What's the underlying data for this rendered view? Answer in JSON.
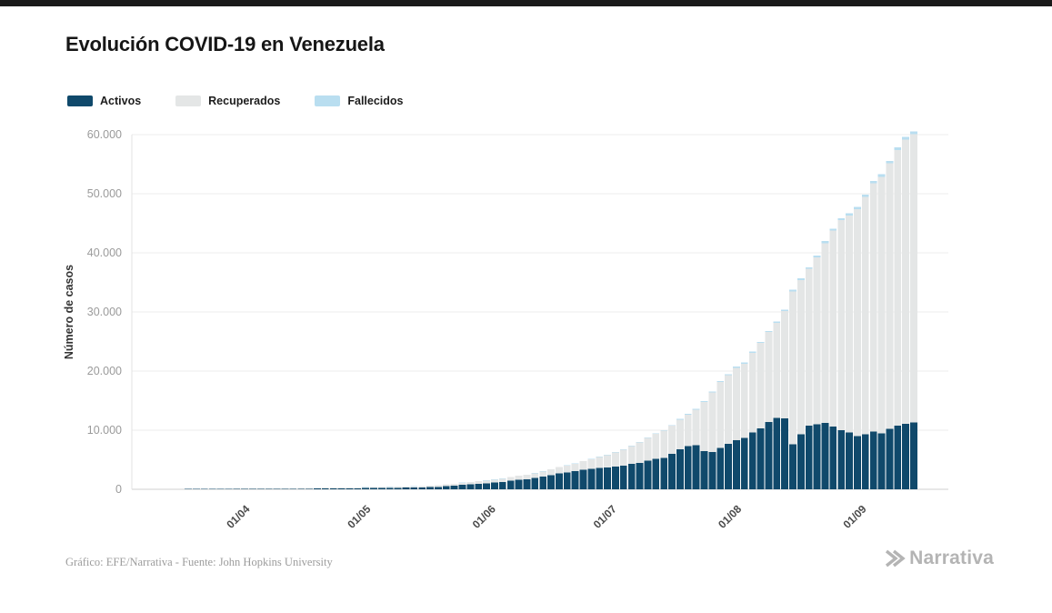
{
  "title": "Evolución COVID-19 en Venezuela",
  "legend": [
    {
      "key": "activos",
      "label": "Activos",
      "color": "#10496b"
    },
    {
      "key": "recuperados",
      "label": "Recuperados",
      "color": "#e4e6e6"
    },
    {
      "key": "fallecidos",
      "label": "Fallecidos",
      "color": "#b9def0"
    }
  ],
  "footer": {
    "credit": "Gráfico: EFE/Narrativa - Fuente: John Hopkins University"
  },
  "logo": {
    "text": "Narrativa"
  },
  "chart_data": {
    "type": "bar",
    "stacked": true,
    "title": "Evolución COVID-19 en Venezuela",
    "xlabel": "",
    "ylabel": "Número de casos",
    "ylim": [
      0,
      60000
    ],
    "grid": "horizontal",
    "legend_position": "top-left",
    "y_ticks": [
      {
        "value": 0,
        "label": "0"
      },
      {
        "value": 10000,
        "label": "10.000"
      },
      {
        "value": 20000,
        "label": "20.000"
      },
      {
        "value": 30000,
        "label": "30.000"
      },
      {
        "value": 40000,
        "label": "40.000"
      },
      {
        "value": 50000,
        "label": "50.000"
      },
      {
        "value": 60000,
        "label": "60.000"
      }
    ],
    "x_ticks": [
      {
        "label": "01/04",
        "day": 27
      },
      {
        "label": "01/05",
        "day": 57
      },
      {
        "label": "01/06",
        "day": 88
      },
      {
        "label": "01/07",
        "day": 118
      },
      {
        "label": "01/08",
        "day": 149
      },
      {
        "label": "01/09",
        "day": 180
      }
    ],
    "colors": {
      "activos": "#10496b",
      "recuperados": "#e4e6e6",
      "fallecidos": "#b9def0"
    },
    "series_order": [
      "activos",
      "recuperados",
      "fallecidos"
    ],
    "columns": [
      "fecha",
      "activos",
      "recuperados",
      "fallecidos"
    ],
    "points": [
      [
        "17/03",
        36,
        0,
        0
      ],
      [
        "19/03",
        41,
        1,
        0
      ],
      [
        "21/03",
        47,
        2,
        1
      ],
      [
        "23/03",
        56,
        5,
        1
      ],
      [
        "25/03",
        66,
        9,
        2
      ],
      [
        "27/03",
        74,
        15,
        2
      ],
      [
        "29/03",
        81,
        23,
        3
      ],
      [
        "31/03",
        94,
        31,
        3
      ],
      [
        "02/04",
        99,
        43,
        4
      ],
      [
        "04/04",
        100,
        50,
        5
      ],
      [
        "06/04",
        100,
        60,
        5
      ],
      [
        "08/04",
        86,
        78,
        7
      ],
      [
        "10/04",
        84,
        84,
        7
      ],
      [
        "12/04",
        82,
        91,
        8
      ],
      [
        "14/04",
        84,
        100,
        9
      ],
      [
        "16/04",
        87,
        108,
        9
      ],
      [
        "18/04",
        103,
        115,
        9
      ],
      [
        "20/04",
        126,
        121,
        9
      ],
      [
        "22/04",
        152,
        126,
        10
      ],
      [
        "24/04",
        171,
        130,
        10
      ],
      [
        "26/04",
        180,
        135,
        10
      ],
      [
        "28/04",
        179,
        140,
        10
      ],
      [
        "30/04",
        181,
        142,
        10
      ],
      [
        "02/05",
        201,
        146,
        10
      ],
      [
        "04/05",
        217,
        152,
        10
      ],
      [
        "06/05",
        232,
        160,
        10
      ],
      [
        "08/05",
        246,
        170,
        10
      ],
      [
        "10/05",
        260,
        182,
        10
      ],
      [
        "12/05",
        273,
        197,
        10
      ],
      [
        "14/05",
        284,
        215,
        10
      ],
      [
        "16/05",
        296,
        235,
        10
      ],
      [
        "18/05",
        352,
        256,
        10
      ],
      [
        "20/05",
        398,
        280,
        10
      ],
      [
        "22/05",
        509,
        305,
        10
      ],
      [
        "24/05",
        601,
        333,
        10
      ],
      [
        "26/05",
        746,
        365,
        10
      ],
      [
        "28/05",
        834,
        400,
        11
      ],
      [
        "30/05",
        917,
        440,
        13
      ],
      [
        "01/06",
        1016,
        480,
        14
      ],
      [
        "03/06",
        1126,
        520,
        16
      ],
      [
        "05/06",
        1236,
        565,
        18
      ],
      [
        "07/06",
        1452,
        615,
        20
      ],
      [
        "09/06",
        1624,
        670,
        22
      ],
      [
        "11/06",
        1720,
        730,
        23
      ],
      [
        "13/06",
        1913,
        800,
        25
      ],
      [
        "15/06",
        2160,
        875,
        27
      ],
      [
        "17/06",
        2396,
        960,
        30
      ],
      [
        "19/06",
        2701,
        1055,
        33
      ],
      [
        "21/06",
        2853,
        1160,
        35
      ],
      [
        "23/06",
        3048,
        1280,
        38
      ],
      [
        "25/06",
        3318,
        1420,
        41
      ],
      [
        "27/06",
        3486,
        1600,
        44
      ],
      [
        "29/06",
        3642,
        1840,
        48
      ],
      [
        "01/07",
        3681,
        2100,
        51
      ],
      [
        "03/07",
        3817,
        2400,
        56
      ],
      [
        "05/07",
        3989,
        2700,
        61
      ],
      [
        "07/07",
        4294,
        3050,
        67
      ],
      [
        "09/07",
        4487,
        3450,
        73
      ],
      [
        "11/07",
        4823,
        3900,
        80
      ],
      [
        "13/07",
        5127,
        4250,
        88
      ],
      [
        "15/07",
        5314,
        4600,
        96
      ],
      [
        "17/07",
        6000,
        4750,
        104
      ],
      [
        "19/07",
        6800,
        4979,
        112
      ],
      [
        "21/07",
        7300,
        5354,
        120
      ],
      [
        "23/07",
        7500,
        5984,
        129
      ],
      [
        "25/07",
        6500,
        8291,
        138
      ],
      [
        "27/07",
        6300,
        10121,
        150
      ],
      [
        "29/07",
        7000,
        11141,
        160
      ],
      [
        "31/07",
        7700,
        11573,
        170
      ],
      [
        "02/08",
        8300,
        12276,
        178
      ],
      [
        "04/08",
        8700,
        12553,
        185
      ],
      [
        "06/08",
        9600,
        13485,
        195
      ],
      [
        "08/08",
        10300,
        14456,
        205
      ],
      [
        "10/08",
        11400,
        15181,
        219
      ],
      [
        "12/08",
        12100,
        16074,
        232
      ],
      [
        "14/08",
        12000,
        18119,
        250
      ],
      [
        "16/08",
        7600,
        25888,
        267
      ],
      [
        "18/08",
        9300,
        26100,
        281
      ],
      [
        "20/08",
        10800,
        26471,
        296
      ],
      [
        "22/08",
        11000,
        28253,
        311
      ],
      [
        "24/08",
        11200,
        30437,
        328
      ],
      [
        "26/08",
        10600,
        33171,
        344
      ],
      [
        "28/08",
        10000,
        35508,
        360
      ],
      [
        "30/08",
        9600,
        36747,
        381
      ],
      [
        "01/09",
        9000,
        38358,
        398
      ],
      [
        "03/09",
        9300,
        40166,
        411
      ],
      [
        "05/09",
        9800,
        41941,
        424
      ],
      [
        "07/09",
        9500,
        43354,
        435
      ],
      [
        "09/09",
        10200,
        44917,
        446
      ],
      [
        "11/09",
        10800,
        46565,
        458
      ],
      [
        "13/09",
        11100,
        48060,
        470
      ],
      [
        "15/09",
        11300,
        48756,
        484
      ]
    ]
  }
}
